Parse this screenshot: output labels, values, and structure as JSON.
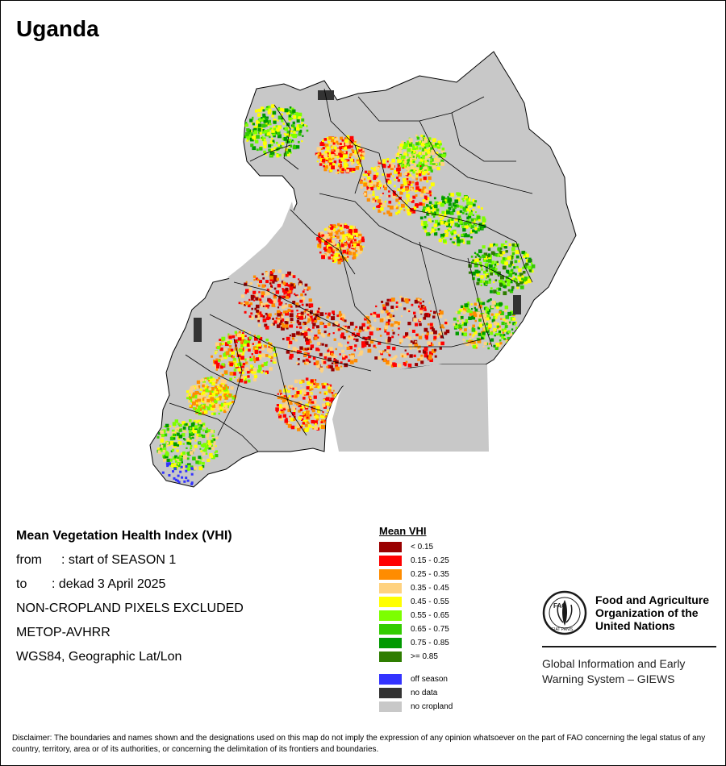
{
  "title": "Uganda",
  "info": {
    "heading": "Mean Vegetation Health Index (VHI)",
    "from_key": "from",
    "from_value": ": start of SEASON 1",
    "to_key": "to",
    "to_value": ": dekad 3 April 2025",
    "mask": "NON-CROPLAND PIXELS EXCLUDED",
    "sensor": "METOP-AVHRR",
    "projection": "WGS84, Geographic Lat/Lon"
  },
  "legend": {
    "title": "Mean VHI",
    "classes": [
      {
        "label": "< 0.15",
        "color": "#990000"
      },
      {
        "label": "0.15 - 0.25",
        "color": "#ff0000"
      },
      {
        "label": "0.25 - 0.35",
        "color": "#ff8c00"
      },
      {
        "label": "0.35 - 0.45",
        "color": "#ffd27f"
      },
      {
        "label": "0.45 - 0.55",
        "color": "#ffff00"
      },
      {
        "label": "0.55 - 0.65",
        "color": "#7cff00"
      },
      {
        "label": "0.65 - 0.75",
        "color": "#33cc00"
      },
      {
        "label": "0.75 - 0.85",
        "color": "#009900"
      },
      {
        "label": ">= 0.85",
        "color": "#2e7d00"
      }
    ],
    "extras": [
      {
        "label": "off season",
        "color": "#3333ff"
      },
      {
        "label": "no data",
        "color": "#333333"
      },
      {
        "label": "no cropland",
        "color": "#c8c8c8"
      }
    ]
  },
  "fao": {
    "logo_text": "FAO",
    "motto": "FIAT PANIS",
    "name_line1": "Food and Agriculture",
    "name_line2": "Organization of the",
    "name_line3": "United Nations",
    "giews_line1": "Global Information and Early",
    "giews_line2": "Warning System – GIEWS"
  },
  "disclaimer": "Disclaimer: The boundaries and names shown and the designations used on this map do not imply the expression of any opinion whatsoever on the part of FAO concerning the legal status of any country, territory, area or of its authorities, or concerning the delimitation of its frontiers and boundaries.",
  "colors": {
    "no_cropland": "#c8c8c8",
    "boundary": "#000000",
    "lake": "#c8c8c8"
  }
}
